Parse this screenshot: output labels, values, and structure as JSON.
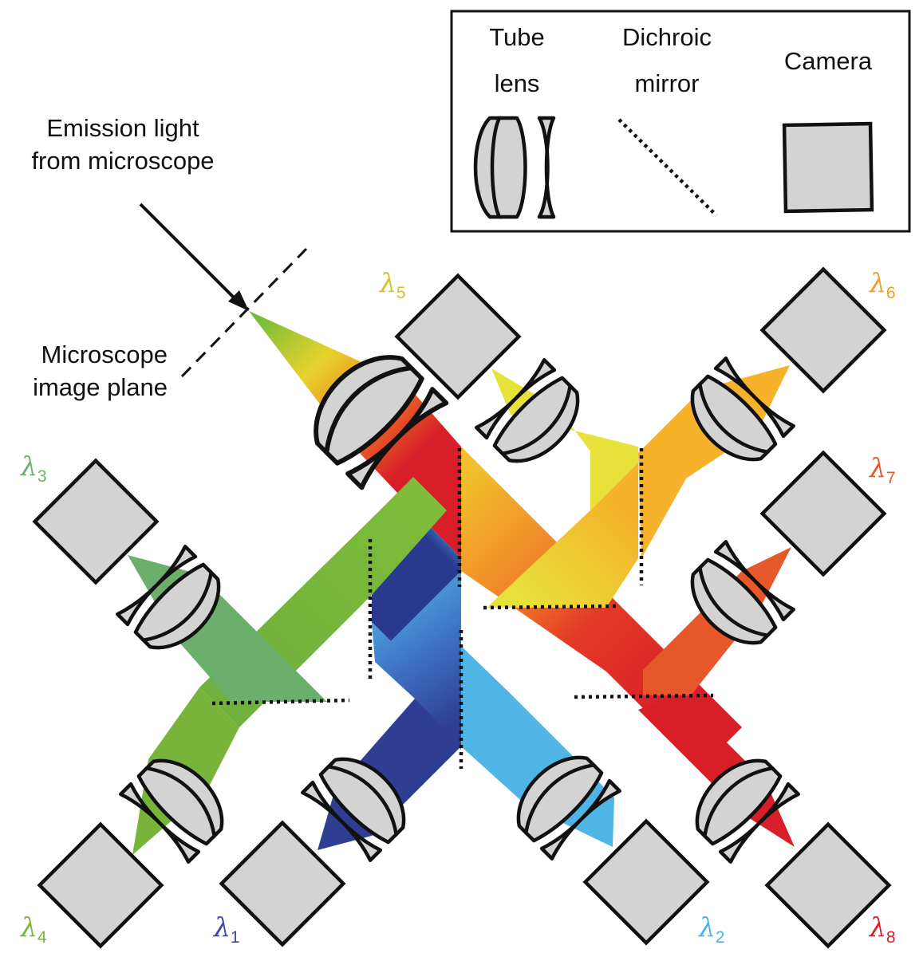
{
  "legend": {
    "tube_lens_line1": "Tube",
    "tube_lens_line2": "lens",
    "dichroic_line1": "Dichroic",
    "dichroic_line2": "mirror",
    "camera": "Camera"
  },
  "annotations": {
    "emission_line1": "Emission light",
    "emission_line2": "from microscope",
    "image_plane_line1": "Microscope",
    "image_plane_line2": "image plane"
  },
  "channels": [
    {
      "id": "1",
      "label": "λ",
      "sub": "1",
      "color": "#3a4494"
    },
    {
      "id": "2",
      "label": "λ",
      "sub": "2",
      "color": "#4db3e6"
    },
    {
      "id": "3",
      "label": "λ",
      "sub": "3",
      "color": "#6cb06c"
    },
    {
      "id": "4",
      "label": "λ",
      "sub": "4",
      "color": "#7ab53a"
    },
    {
      "id": "5",
      "label": "λ",
      "sub": "5",
      "color": "#d9c42a"
    },
    {
      "id": "6",
      "label": "λ",
      "sub": "6",
      "color": "#f0a82a"
    },
    {
      "id": "7",
      "label": "λ",
      "sub": "7",
      "color": "#e8562a"
    },
    {
      "id": "8",
      "label": "λ",
      "sub": "8",
      "color": "#d81e28"
    }
  ]
}
